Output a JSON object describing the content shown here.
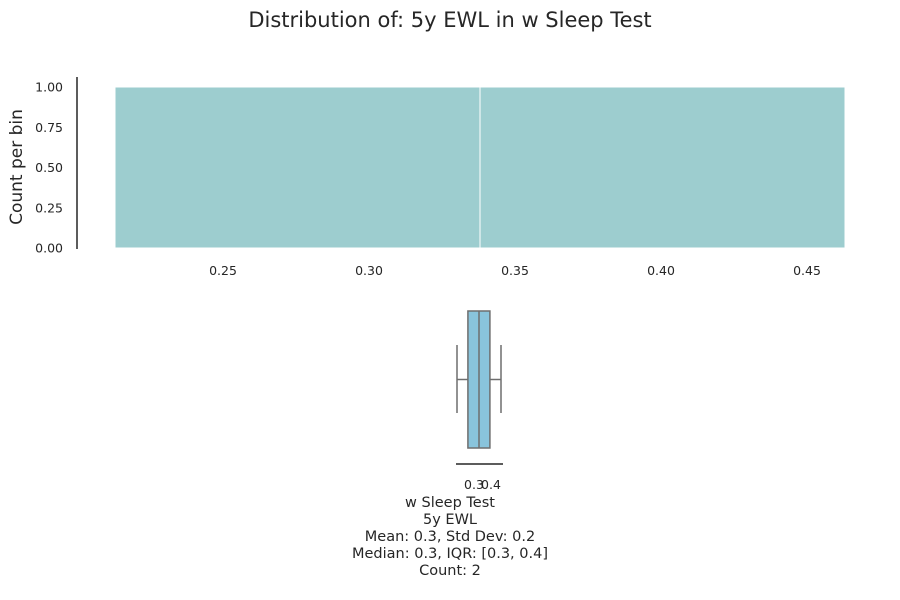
{
  "chart_data": [
    {
      "type": "bar",
      "subtype": "histogram",
      "title": "Distribution of: 5y EWL in w Sleep Test",
      "xlabel": "",
      "ylabel": "Count per bin",
      "bins": [
        {
          "x0": 0.213,
          "x1": 0.338,
          "count": 1
        },
        {
          "x0": 0.338,
          "x1": 0.463,
          "count": 1
        }
      ],
      "xlim": [
        0.213,
        0.463
      ],
      "ylim": [
        0,
        1
      ],
      "xticks": [
        "0.25",
        "0.30",
        "0.35",
        "0.40",
        "0.45"
      ],
      "yticks": [
        "0.00",
        "0.25",
        "0.50",
        "0.75",
        "1.00"
      ],
      "bar_color": "#9dcdcf",
      "grid": false
    },
    {
      "type": "box",
      "group": "w Sleep Test",
      "min": 0.213,
      "q1": 0.275,
      "median": 0.338,
      "q3": 0.4,
      "max": 0.463,
      "xticks": [
        "0.3",
        "0.4"
      ],
      "box_color": "#89c4dc",
      "line_color": "#6e6e6e"
    }
  ],
  "stats_lines": [
    "w Sleep Test",
    "5y EWL",
    "Mean: 0.3, Std Dev: 0.2",
    "Median: 0.3, IQR: [0.3, 0.4]",
    "Count: 2"
  ]
}
